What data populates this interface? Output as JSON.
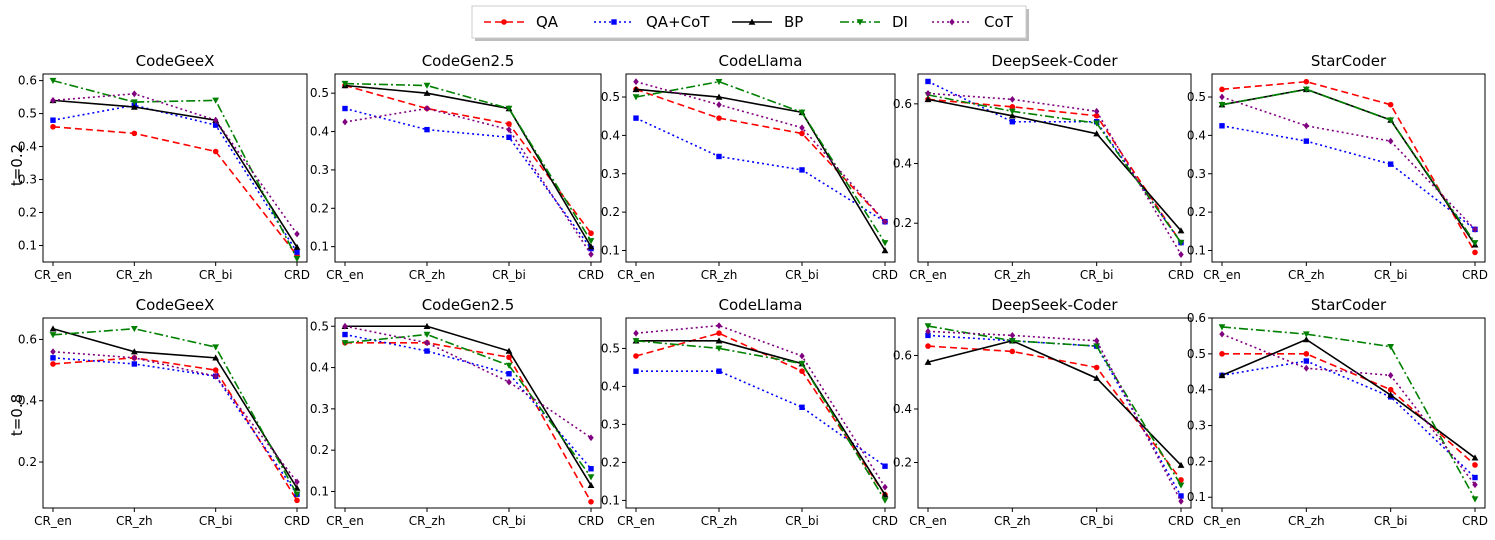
{
  "legend": {
    "items": [
      {
        "label": "QA",
        "color": "#ff0000",
        "dash": "dashed",
        "marker": "circle"
      },
      {
        "label": "QA+CoT",
        "color": "#0000ff",
        "dash": "dotted",
        "marker": "square"
      },
      {
        "label": "BP",
        "color": "#000000",
        "dash": "solid",
        "marker": "triangle-up"
      },
      {
        "label": "DI",
        "color": "#008000",
        "dash": "dashdot",
        "marker": "triangle-down"
      },
      {
        "label": "CoT",
        "color": "#800080",
        "dash": "dotted",
        "marker": "diamond"
      }
    ]
  },
  "row_labels": [
    "t=0.2",
    "t=0.8"
  ],
  "chart_data": [
    {
      "type": "line",
      "row": 0,
      "col": 0,
      "title": "CodeGeeX",
      "categories": [
        "CR_en",
        "CR_zh",
        "CR_bi",
        "CRD"
      ],
      "ylim": [
        0.05,
        0.62
      ],
      "yticks": [
        0.1,
        0.2,
        0.3,
        0.4,
        0.5,
        0.6
      ],
      "series": [
        {
          "name": "QA",
          "values": [
            0.46,
            0.44,
            0.385,
            0.07
          ]
        },
        {
          "name": "QA+CoT",
          "values": [
            0.48,
            0.525,
            0.465,
            0.08
          ]
        },
        {
          "name": "BP",
          "values": [
            0.54,
            0.52,
            0.48,
            0.095
          ]
        },
        {
          "name": "DI",
          "values": [
            0.6,
            0.535,
            0.54,
            0.06
          ]
        },
        {
          "name": "CoT",
          "values": [
            0.54,
            0.56,
            0.48,
            0.135
          ]
        }
      ]
    },
    {
      "type": "line",
      "row": 0,
      "col": 1,
      "title": "CodeGen2.5",
      "categories": [
        "CR_en",
        "CR_zh",
        "CR_bi",
        "CRD"
      ],
      "ylim": [
        0.06,
        0.55
      ],
      "yticks": [
        0.1,
        0.2,
        0.3,
        0.4,
        0.5
      ],
      "series": [
        {
          "name": "QA",
          "values": [
            0.52,
            0.46,
            0.42,
            0.135
          ]
        },
        {
          "name": "QA+CoT",
          "values": [
            0.46,
            0.405,
            0.385,
            0.095
          ]
        },
        {
          "name": "BP",
          "values": [
            0.52,
            0.5,
            0.46,
            0.1
          ]
        },
        {
          "name": "DI",
          "values": [
            0.525,
            0.52,
            0.46,
            0.115
          ]
        },
        {
          "name": "CoT",
          "values": [
            0.425,
            0.46,
            0.405,
            0.08
          ]
        }
      ]
    },
    {
      "type": "line",
      "row": 0,
      "col": 2,
      "title": "CodeLlama",
      "categories": [
        "CR_en",
        "CR_zh",
        "CR_bi",
        "CRD"
      ],
      "ylim": [
        0.07,
        0.56
      ],
      "yticks": [
        0.1,
        0.2,
        0.3,
        0.4,
        0.5
      ],
      "series": [
        {
          "name": "QA",
          "values": [
            0.52,
            0.445,
            0.405,
            0.175
          ]
        },
        {
          "name": "QA+CoT",
          "values": [
            0.445,
            0.345,
            0.31,
            0.175
          ]
        },
        {
          "name": "BP",
          "values": [
            0.52,
            0.5,
            0.46,
            0.1
          ]
        },
        {
          "name": "DI",
          "values": [
            0.5,
            0.54,
            0.46,
            0.12
          ]
        },
        {
          "name": "CoT",
          "values": [
            0.54,
            0.48,
            0.42,
            0.175
          ]
        }
      ]
    },
    {
      "type": "line",
      "row": 0,
      "col": 3,
      "title": "DeepSeek-Coder",
      "categories": [
        "CR_en",
        "CR_zh",
        "CR_bi",
        "CRD"
      ],
      "ylim": [
        0.07,
        0.7
      ],
      "yticks": [
        0.2,
        0.4,
        0.6
      ],
      "series": [
        {
          "name": "QA",
          "values": [
            0.615,
            0.59,
            0.56,
            0.135
          ]
        },
        {
          "name": "QA+CoT",
          "values": [
            0.675,
            0.54,
            0.54,
            0.135
          ]
        },
        {
          "name": "BP",
          "values": [
            0.615,
            0.56,
            0.5,
            0.175
          ]
        },
        {
          "name": "DI",
          "values": [
            0.63,
            0.575,
            0.535,
            0.135
          ]
        },
        {
          "name": "CoT",
          "values": [
            0.635,
            0.615,
            0.575,
            0.095
          ]
        }
      ]
    },
    {
      "type": "line",
      "row": 0,
      "col": 4,
      "title": "StarCoder",
      "categories": [
        "CR_en",
        "CR_zh",
        "CR_bi",
        "CRD"
      ],
      "ylim": [
        0.07,
        0.56
      ],
      "yticks": [
        0.1,
        0.2,
        0.3,
        0.4,
        0.5
      ],
      "series": [
        {
          "name": "QA",
          "values": [
            0.52,
            0.54,
            0.48,
            0.095
          ]
        },
        {
          "name": "QA+CoT",
          "values": [
            0.425,
            0.385,
            0.325,
            0.155
          ]
        },
        {
          "name": "BP",
          "values": [
            0.48,
            0.52,
            0.44,
            0.115
          ]
        },
        {
          "name": "DI",
          "values": [
            0.48,
            0.52,
            0.44,
            0.12
          ]
        },
        {
          "name": "CoT",
          "values": [
            0.5,
            0.425,
            0.385,
            0.155
          ]
        }
      ]
    },
    {
      "type": "line",
      "row": 1,
      "col": 0,
      "title": "CodeGeeX",
      "categories": [
        "CR_en",
        "CR_zh",
        "CR_bi",
        "CRD"
      ],
      "ylim": [
        0.05,
        0.67
      ],
      "yticks": [
        0.2,
        0.4,
        0.6
      ],
      "series": [
        {
          "name": "QA",
          "values": [
            0.52,
            0.54,
            0.5,
            0.075
          ]
        },
        {
          "name": "QA+CoT",
          "values": [
            0.54,
            0.52,
            0.48,
            0.095
          ]
        },
        {
          "name": "BP",
          "values": [
            0.635,
            0.56,
            0.54,
            0.115
          ]
        },
        {
          "name": "DI",
          "values": [
            0.615,
            0.635,
            0.575,
            0.095
          ]
        },
        {
          "name": "CoT",
          "values": [
            0.56,
            0.54,
            0.48,
            0.135
          ]
        }
      ]
    },
    {
      "type": "line",
      "row": 1,
      "col": 1,
      "title": "CodeGen2.5",
      "categories": [
        "CR_en",
        "CR_zh",
        "CR_bi",
        "CRD"
      ],
      "ylim": [
        0.06,
        0.52
      ],
      "yticks": [
        0.1,
        0.2,
        0.3,
        0.4,
        0.5
      ],
      "series": [
        {
          "name": "QA",
          "values": [
            0.46,
            0.46,
            0.425,
            0.075
          ]
        },
        {
          "name": "QA+CoT",
          "values": [
            0.48,
            0.44,
            0.385,
            0.155
          ]
        },
        {
          "name": "BP",
          "values": [
            0.5,
            0.5,
            0.44,
            0.115
          ]
        },
        {
          "name": "DI",
          "values": [
            0.46,
            0.48,
            0.405,
            0.135
          ]
        },
        {
          "name": "CoT",
          "values": [
            0.5,
            0.46,
            0.365,
            0.23
          ]
        }
      ]
    },
    {
      "type": "line",
      "row": 1,
      "col": 2,
      "title": "CodeLlama",
      "categories": [
        "CR_en",
        "CR_zh",
        "CR_bi",
        "CRD"
      ],
      "ylim": [
        0.08,
        0.58
      ],
      "yticks": [
        0.1,
        0.2,
        0.3,
        0.4,
        0.5
      ],
      "series": [
        {
          "name": "QA",
          "values": [
            0.48,
            0.54,
            0.44,
            0.115
          ]
        },
        {
          "name": "QA+CoT",
          "values": [
            0.44,
            0.44,
            0.345,
            0.19
          ]
        },
        {
          "name": "BP",
          "values": [
            0.52,
            0.52,
            0.46,
            0.115
          ]
        },
        {
          "name": "DI",
          "values": [
            0.52,
            0.5,
            0.46,
            0.1
          ]
        },
        {
          "name": "CoT",
          "values": [
            0.54,
            0.56,
            0.48,
            0.135
          ]
        }
      ]
    },
    {
      "type": "line",
      "row": 1,
      "col": 3,
      "title": "DeepSeek-Coder",
      "categories": [
        "CR_en",
        "CR_zh",
        "CR_bi",
        "CRD"
      ],
      "ylim": [
        0.03,
        0.74
      ],
      "yticks": [
        0.2,
        0.4,
        0.6
      ],
      "series": [
        {
          "name": "QA",
          "values": [
            0.635,
            0.615,
            0.555,
            0.135
          ]
        },
        {
          "name": "QA+CoT",
          "values": [
            0.675,
            0.655,
            0.635,
            0.075
          ]
        },
        {
          "name": "BP",
          "values": [
            0.575,
            0.655,
            0.515,
            0.19
          ]
        },
        {
          "name": "DI",
          "values": [
            0.71,
            0.655,
            0.635,
            0.115
          ]
        },
        {
          "name": "CoT",
          "values": [
            0.69,
            0.675,
            0.655,
            0.055
          ]
        }
      ]
    },
    {
      "type": "line",
      "row": 1,
      "col": 4,
      "title": "StarCoder",
      "categories": [
        "CR_en",
        "CR_zh",
        "CR_bi",
        "CRD"
      ],
      "ylim": [
        0.07,
        0.6
      ],
      "yticks": [
        0.1,
        0.2,
        0.3,
        0.4,
        0.5,
        0.6
      ],
      "series": [
        {
          "name": "QA",
          "values": [
            0.5,
            0.5,
            0.4,
            0.19
          ]
        },
        {
          "name": "QA+CoT",
          "values": [
            0.44,
            0.48,
            0.38,
            0.155
          ]
        },
        {
          "name": "BP",
          "values": [
            0.44,
            0.54,
            0.385,
            0.21
          ]
        },
        {
          "name": "DI",
          "values": [
            0.575,
            0.555,
            0.52,
            0.095
          ]
        },
        {
          "name": "CoT",
          "values": [
            0.555,
            0.46,
            0.44,
            0.135
          ]
        }
      ]
    }
  ]
}
